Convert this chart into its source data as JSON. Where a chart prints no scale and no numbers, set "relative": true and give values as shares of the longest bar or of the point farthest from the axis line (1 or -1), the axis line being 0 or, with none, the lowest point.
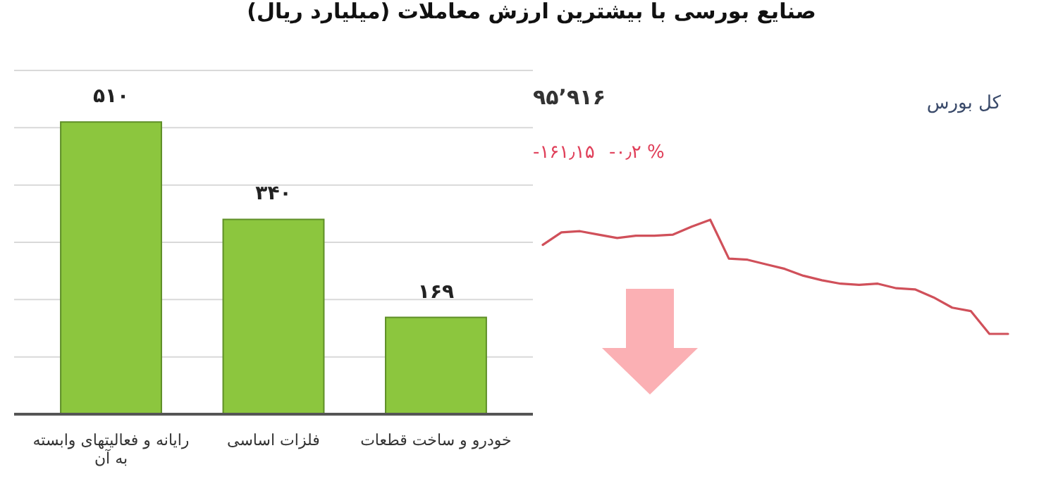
{
  "chart_data": [
    {
      "type": "bar",
      "title": "صنایع بورسی با بیشترین ارزش معاملات  (میلیارد ریال)",
      "categories": [
        "رایانه و فعالیتهای وابسته به آن",
        "فلزات اساسی",
        "خودرو و ساخت قطعات"
      ],
      "values": [
        510,
        340,
        169
      ],
      "value_labels": [
        "۵۱۰",
        "۳۴۰",
        "۱۶۹"
      ],
      "color": "#8cc63e",
      "ylim": [
        0,
        600
      ],
      "yticks": [
        {
          "value": 0,
          "label": null
        },
        {
          "value": 100,
          "label": null
        },
        {
          "value": 200,
          "label": null
        },
        {
          "value": 300,
          "label": null
        },
        {
          "value": 400,
          "label": null
        },
        {
          "value": 500,
          "label": null
        },
        {
          "value": 600,
          "label": null
        }
      ],
      "grid": "y",
      "tick_labels": "x"
    },
    {
      "type": "line",
      "title": "کل بورس",
      "relative": true,
      "categories": [
        null,
        null,
        null,
        null,
        null,
        null,
        null,
        null,
        null,
        null,
        null,
        null,
        null,
        null,
        null,
        null,
        null,
        null,
        null,
        null,
        null,
        null,
        null,
        null,
        null,
        null
      ],
      "series": [
        {
          "color": "#d0505a",
          "values": [
            0.78,
            0.89,
            0.9,
            0.87,
            0.84,
            0.86,
            0.86,
            0.87,
            0.94,
            1,
            0.66,
            0.65,
            0.61,
            0.57,
            0.51,
            0.47,
            0.44,
            0.43,
            0.44,
            0.4,
            0.39,
            0.32,
            0.23,
            0.2,
            0,
            0
          ]
        }
      ],
      "annotations": [
        "۹۵’۹۱۶",
        "-۱۶۱٫۱۵",
        "-۰٫۲ %"
      ]
    }
  ]
}
